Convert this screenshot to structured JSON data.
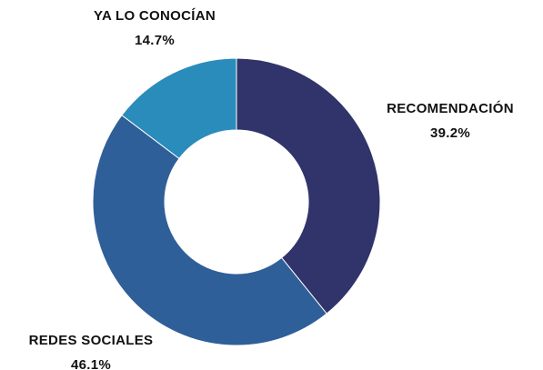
{
  "chart_data": {
    "type": "donut",
    "categories": [
      "RECOMENDACIÓN",
      "REDES SOCIALES",
      "YA LO CONOCÍAN"
    ],
    "values": [
      39.2,
      46.1,
      14.7
    ],
    "value_labels": [
      "39.2%",
      "46.1%",
      "14.7%"
    ],
    "colors": [
      "#30346a",
      "#2f5f98",
      "#2a8cba"
    ]
  }
}
